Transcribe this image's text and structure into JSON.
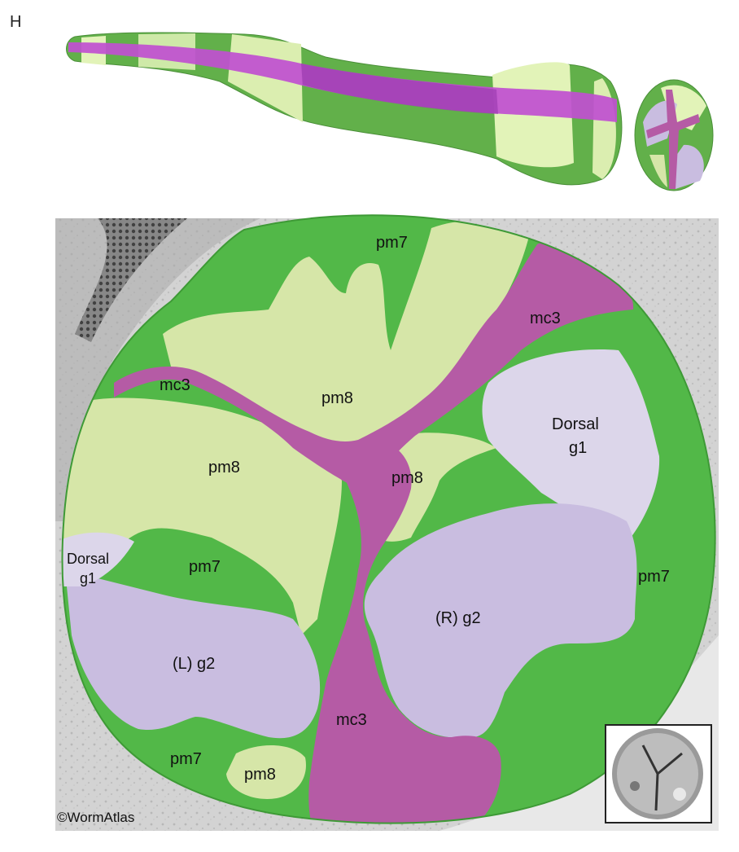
{
  "figure": {
    "panel_letter": "H",
    "copyright": "©WormAtlas"
  },
  "colors": {
    "pm7": "#52b848",
    "pm8": "#d6e6a8",
    "mc3": "#b55ba5",
    "g1": "#dcd6ea",
    "g2": "#c9bde0",
    "magenta_3d": "#c04fd0",
    "em_background": "#c9c9c9"
  },
  "labels": {
    "pm7_top": "pm7",
    "mc3_upper_right": "mc3",
    "mc3_upper_left": "mc3",
    "pm8_top": "pm8",
    "dorsal_g1_right_line1": "Dorsal",
    "dorsal_g1_right_line2": "g1",
    "pm8_left": "pm8",
    "pm8_center": "pm8",
    "dorsal_g1_left_line1": "Dorsal",
    "dorsal_g1_left_line2": "g1",
    "pm7_left": "pm7",
    "pm7_right": "pm7",
    "r_g2": "(R) g2",
    "l_g2": "(L) g2",
    "mc3_bottom": "mc3",
    "pm7_bottom": "pm7",
    "pm8_bottom": "pm8"
  }
}
